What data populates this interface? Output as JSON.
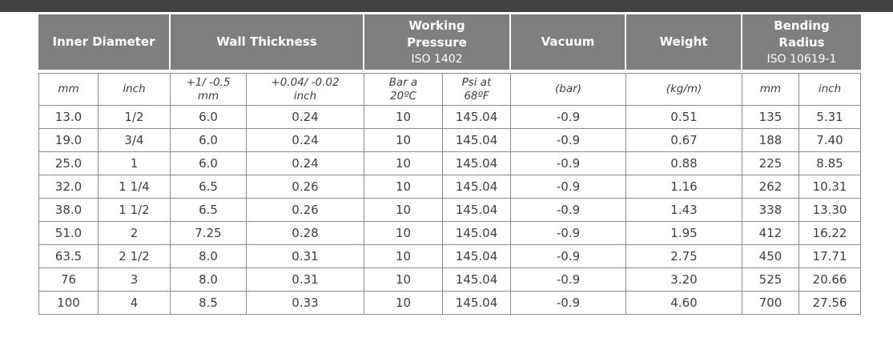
{
  "page": {
    "background": "#ffffff",
    "top_bar_color": "#424242"
  },
  "table": {
    "colors": {
      "header_bg": "#7f7f7f",
      "header_text": "#ffffff",
      "grid_line": "#8c8c8c",
      "cell_text": "#3f3f3f"
    },
    "header_groups": [
      {
        "title": "Inner Diameter",
        "iso": ""
      },
      {
        "title": "Wall Thickness",
        "iso": ""
      },
      {
        "title": "Working Pressure",
        "iso": "ISO 1402"
      },
      {
        "title": "Vacuum",
        "iso": ""
      },
      {
        "title": "Weight",
        "iso": ""
      },
      {
        "title": "Bending Radius",
        "iso": "ISO 10619-1"
      }
    ],
    "subheaders": [
      {
        "l1": "mm",
        "l2": ""
      },
      {
        "l1": "inch",
        "l2": ""
      },
      {
        "l1": "+1/ -0.5",
        "l2": "mm"
      },
      {
        "l1": "+0.04/ -0.02",
        "l2": "inch"
      },
      {
        "l1": "Bar a",
        "l2": "20ºC"
      },
      {
        "l1": "Psi at",
        "l2": "68ºF"
      },
      {
        "l1": "(bar)",
        "l2": ""
      },
      {
        "l1": "(kg/m)",
        "l2": ""
      },
      {
        "l1": "mm",
        "l2": ""
      },
      {
        "l1": "inch",
        "l2": ""
      }
    ],
    "rows": [
      [
        "13.0",
        "1/2",
        "6.0",
        "0.24",
        "10",
        "145.04",
        "-0.9",
        "0.51",
        "135",
        "5.31"
      ],
      [
        "19.0",
        "3/4",
        "6.0",
        "0.24",
        "10",
        "145.04",
        "-0.9",
        "0.67",
        "188",
        "7.40"
      ],
      [
        "25.0",
        "1",
        "6.0",
        "0.24",
        "10",
        "145.04",
        "-0.9",
        "0.88",
        "225",
        "8.85"
      ],
      [
        "32.0",
        "1 1/4",
        "6.5",
        "0.26",
        "10",
        "145.04",
        "-0.9",
        "1.16",
        "262",
        "10.31"
      ],
      [
        "38.0",
        "1 1/2",
        "6.5",
        "0.26",
        "10",
        "145.04",
        "-0.9",
        "1.43",
        "338",
        "13.30"
      ],
      [
        "51.0",
        "2",
        "7.25",
        "0.28",
        "10",
        "145.04",
        "-0.9",
        "1.95",
        "412",
        "16.22"
      ],
      [
        "63.5",
        "2 1/2",
        "8.0",
        "0.31",
        "10",
        "145.04",
        "-0.9",
        "2.75",
        "450",
        "17.71"
      ],
      [
        "76",
        "3",
        "8.0",
        "0.31",
        "10",
        "145.04",
        "-0.9",
        "3.20",
        "525",
        "20.66"
      ],
      [
        "100",
        "4",
        "8.5",
        "0.33",
        "10",
        "145.04",
        "-0.9",
        "4.60",
        "700",
        "27.56"
      ]
    ]
  }
}
